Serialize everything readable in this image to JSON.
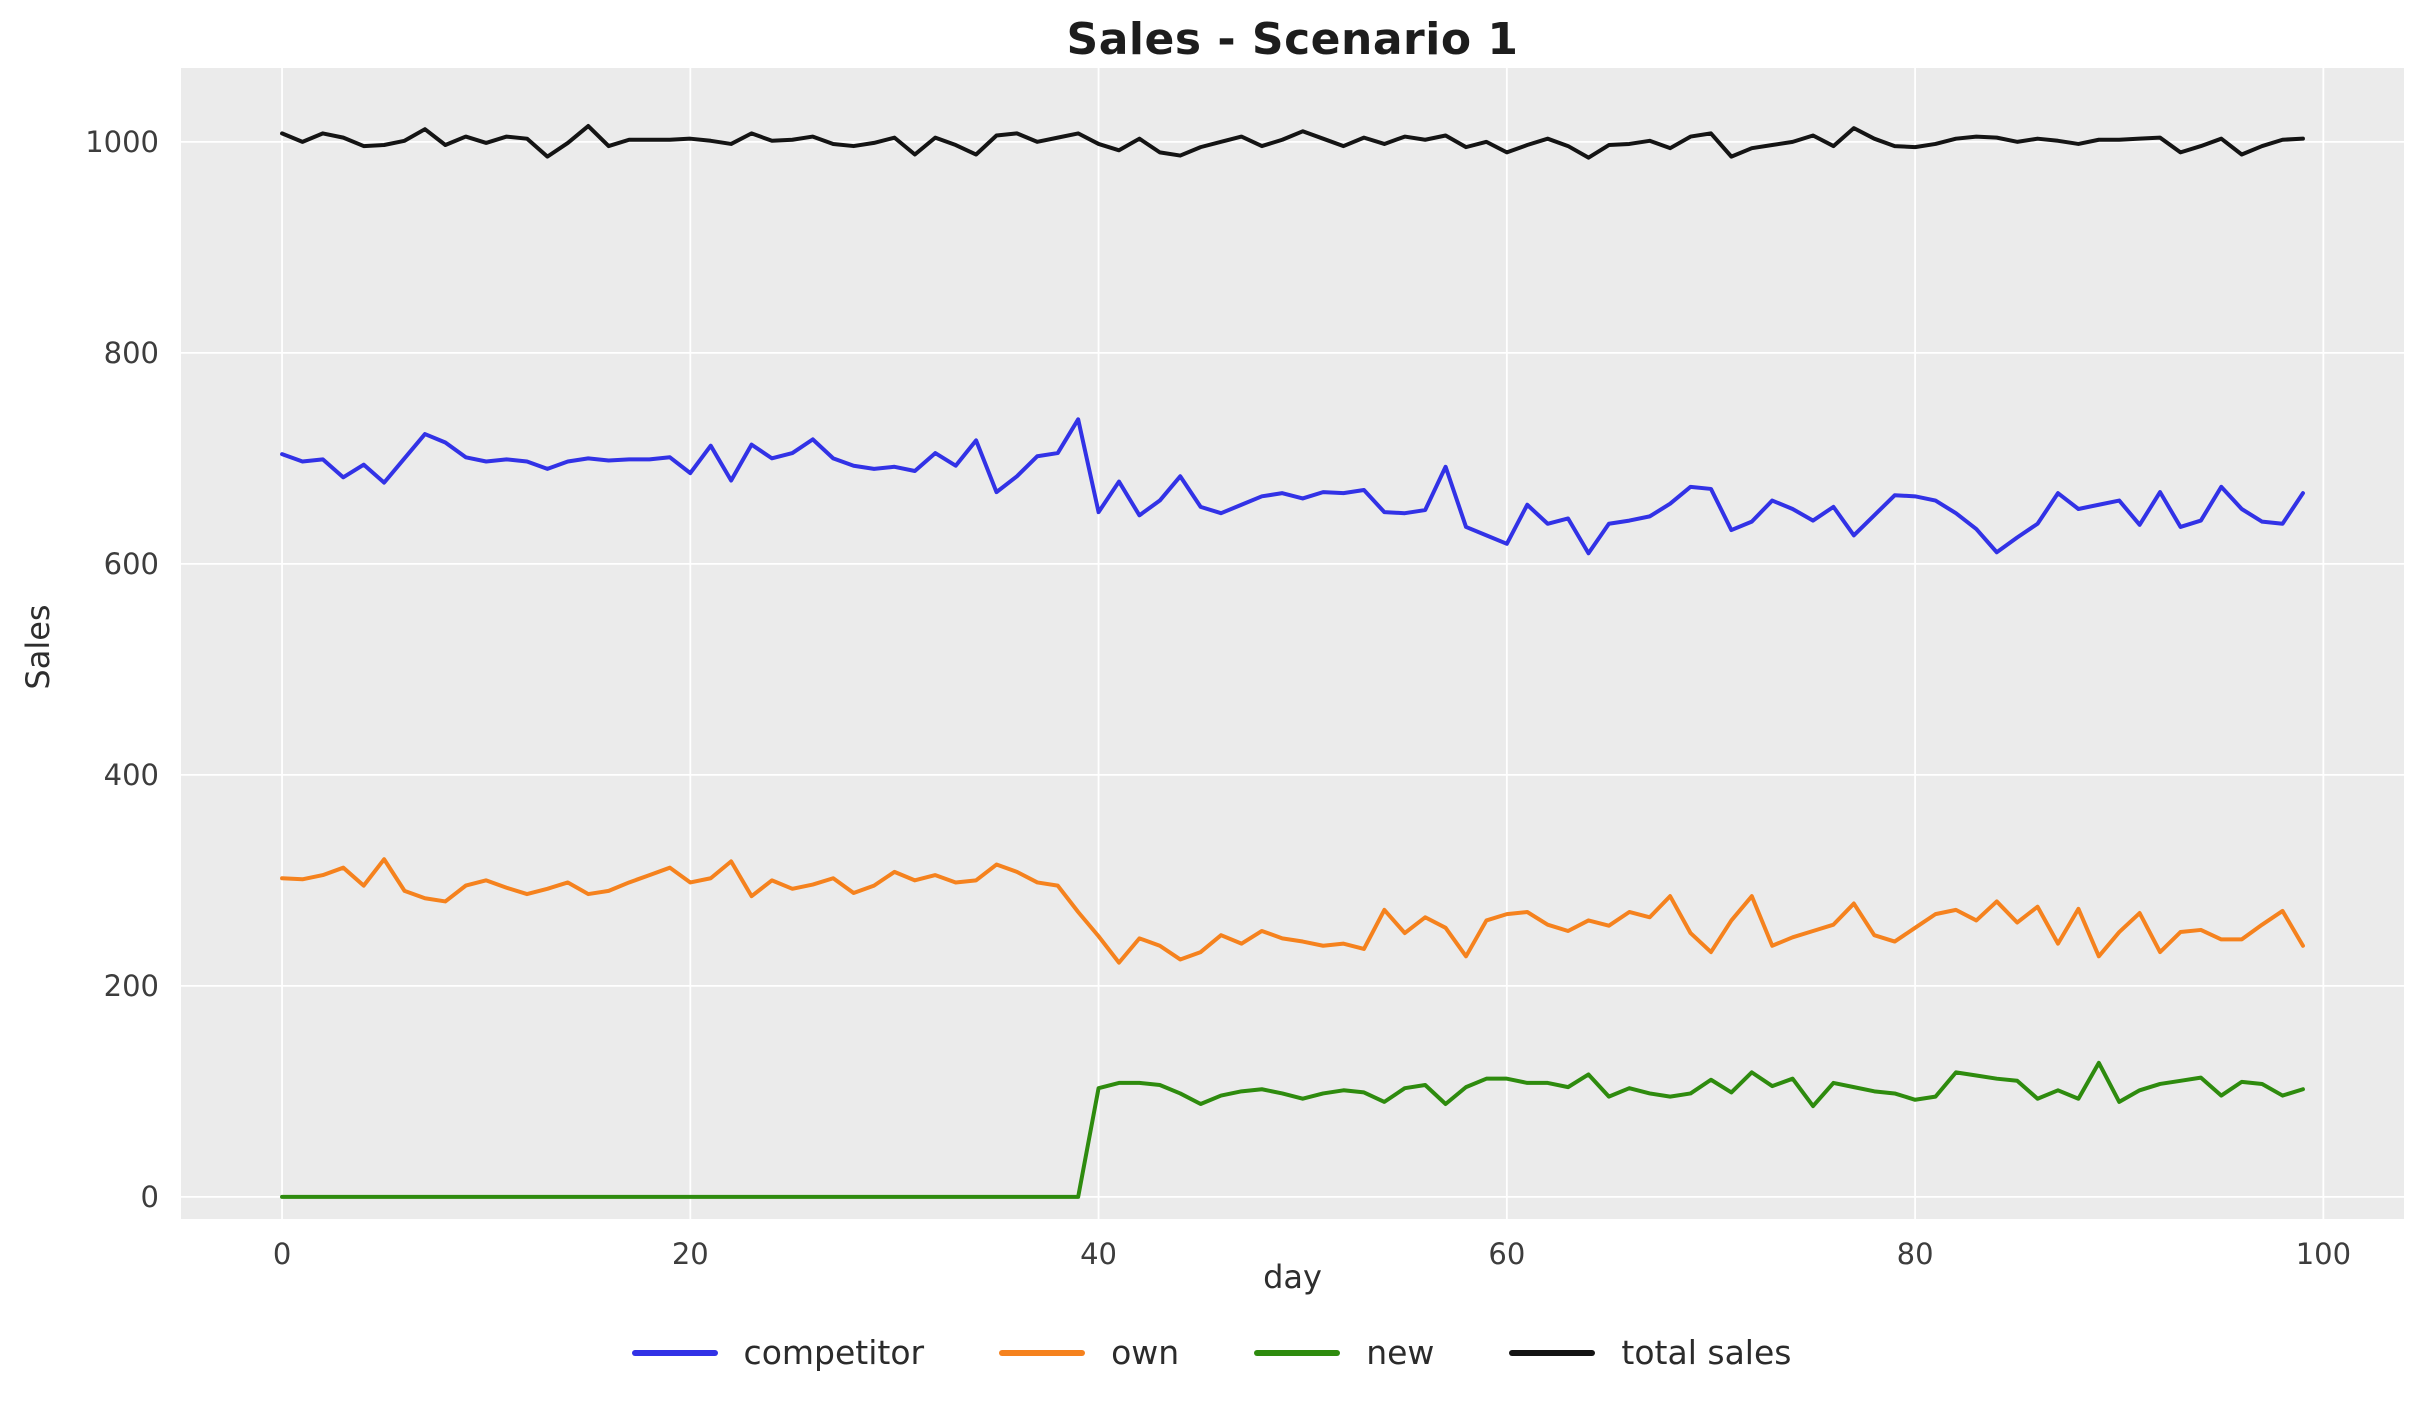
{
  "chart_data": {
    "type": "line",
    "title": "Sales - Scenario 1",
    "xlabel": "day",
    "ylabel": "Sales",
    "legend_position": "bottom-center",
    "grid": true,
    "plot_background": "#ebebeb",
    "grid_color": "#ffffff",
    "tick_color": "#3d3d3d",
    "xlim": [
      -4.95,
      103.95
    ],
    "ylim": [
      -21,
      1070
    ],
    "xticks": [
      0,
      20,
      40,
      60,
      80,
      100
    ],
    "yticks": [
      0,
      200,
      400,
      600,
      800,
      1000
    ],
    "x": [
      0,
      1,
      2,
      3,
      4,
      5,
      6,
      7,
      8,
      9,
      10,
      11,
      12,
      13,
      14,
      15,
      16,
      17,
      18,
      19,
      20,
      21,
      22,
      23,
      24,
      25,
      26,
      27,
      28,
      29,
      30,
      31,
      32,
      33,
      34,
      35,
      36,
      37,
      38,
      39,
      40,
      41,
      42,
      43,
      44,
      45,
      46,
      47,
      48,
      49,
      50,
      51,
      52,
      53,
      54,
      55,
      56,
      57,
      58,
      59,
      60,
      61,
      62,
      63,
      64,
      65,
      66,
      67,
      68,
      69,
      70,
      71,
      72,
      73,
      74,
      75,
      76,
      77,
      78,
      79,
      80,
      81,
      82,
      83,
      84,
      85,
      86,
      87,
      88,
      89,
      90,
      91,
      92,
      93,
      94,
      95,
      96,
      97,
      98,
      99
    ],
    "series": [
      {
        "name": "competitor",
        "color": "#3232e6",
        "values": [
          704,
          697,
          699,
          682,
          694,
          677,
          700,
          723,
          715,
          701,
          697,
          699,
          697,
          690,
          697,
          700,
          698,
          699,
          699,
          701,
          686,
          712,
          679,
          713,
          700,
          705,
          718,
          700,
          693,
          690,
          692,
          688,
          705,
          693,
          717,
          668,
          683,
          702,
          705,
          737,
          649,
          678,
          646,
          660,
          683,
          654,
          648,
          656,
          664,
          667,
          662,
          668,
          667,
          670,
          649,
          648,
          651,
          692,
          635,
          627,
          619,
          656,
          638,
          643,
          610,
          638,
          641,
          645,
          657,
          673,
          671,
          632,
          640,
          660,
          652,
          641,
          654,
          627,
          646,
          665,
          664,
          660,
          648,
          633,
          611,
          625,
          638,
          667,
          652,
          656,
          660,
          637,
          668,
          635,
          641,
          673,
          652,
          640,
          638,
          667
        ]
      },
      {
        "name": "own",
        "color": "#f5821e",
        "values": [
          302,
          301,
          305,
          312,
          295,
          320,
          290,
          283,
          280,
          295,
          300,
          293,
          287,
          292,
          298,
          287,
          290,
          298,
          305,
          312,
          298,
          302,
          318,
          285,
          300,
          292,
          296,
          302,
          288,
          295,
          308,
          300,
          305,
          298,
          300,
          315,
          308,
          298,
          295,
          270,
          247,
          222,
          245,
          238,
          225,
          232,
          248,
          240,
          252,
          245,
          242,
          238,
          240,
          235,
          272,
          250,
          265,
          255,
          228,
          262,
          268,
          270,
          258,
          252,
          262,
          257,
          270,
          265,
          285,
          250,
          232,
          262,
          285,
          238,
          246,
          252,
          258,
          278,
          248,
          242,
          255,
          268,
          272,
          262,
          280,
          260,
          275,
          240,
          273,
          228,
          251,
          269,
          232,
          251,
          253,
          244,
          244,
          258,
          271,
          238
        ]
      },
      {
        "name": "new",
        "color": "#2e8b0e",
        "values": [
          0,
          0,
          0,
          0,
          0,
          0,
          0,
          0,
          0,
          0,
          0,
          0,
          0,
          0,
          0,
          0,
          0,
          0,
          0,
          0,
          0,
          0,
          0,
          0,
          0,
          0,
          0,
          0,
          0,
          0,
          0,
          0,
          0,
          0,
          0,
          0,
          0,
          0,
          0,
          0,
          103,
          108,
          108,
          106,
          98,
          88,
          96,
          100,
          102,
          98,
          93,
          98,
          101,
          99,
          90,
          103,
          106,
          88,
          104,
          112,
          112,
          108,
          108,
          104,
          116,
          95,
          103,
          98,
          95,
          98,
          111,
          99,
          118,
          105,
          112,
          86,
          108,
          104,
          100,
          98,
          92,
          95,
          118,
          115,
          112,
          110,
          93,
          101,
          93,
          127,
          90,
          101,
          107,
          110,
          113,
          96,
          109,
          107,
          96,
          102
        ]
      },
      {
        "name": "total sales",
        "color": "#141414",
        "values": [
          1008,
          1000,
          1008,
          1004,
          996,
          997,
          1001,
          1012,
          997,
          1005,
          999,
          1005,
          1003,
          986,
          999,
          1015,
          996,
          1002,
          1002,
          1002,
          1003,
          1001,
          998,
          1008,
          1001,
          1002,
          1005,
          998,
          996,
          999,
          1004,
          988,
          1004,
          997,
          988,
          1006,
          1008,
          1000,
          1004,
          1008,
          998,
          992,
          1003,
          990,
          987,
          995,
          1000,
          1005,
          996,
          1002,
          1010,
          1003,
          996,
          1004,
          998,
          1005,
          1002,
          1006,
          995,
          1000,
          990,
          997,
          1003,
          996,
          985,
          997,
          998,
          1001,
          994,
          1005,
          1008,
          986,
          994,
          997,
          1000,
          1006,
          996,
          1013,
          1003,
          996,
          995,
          998,
          1003,
          1005,
          1004,
          1000,
          1003,
          1001,
          998,
          1002,
          1002,
          1003,
          1004,
          990,
          996,
          1003,
          988,
          996,
          1002,
          1003
        ]
      }
    ]
  }
}
